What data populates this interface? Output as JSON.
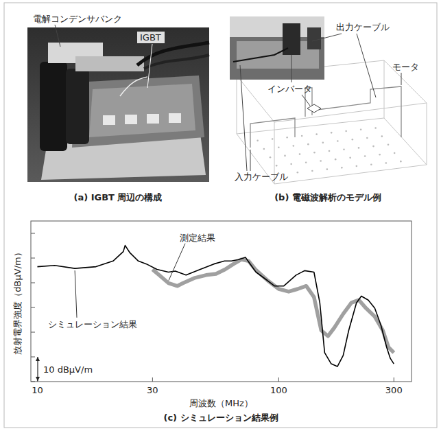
{
  "panels": [
    {
      "caption": "(a) IGBT 周辺の構成",
      "labels": [
        "電解コンデンサバンク",
        "IGBT"
      ]
    },
    {
      "caption": "(b) 電磁波解析のモデル例",
      "labels": [
        "出力ケーブル",
        "モータ",
        "インバータ",
        "入力ケーブル"
      ]
    }
  ],
  "chart_data": {
    "type": "line",
    "title": "(c) シミュレーション結果例",
    "x_label": "周波数（MHz）",
    "y_label": "放射電界強度（dBμV/m）",
    "log": "x",
    "grid": false,
    "tick_labels": "x",
    "xlim": [
      9.4,
      355
    ],
    "xticks": [
      10,
      30,
      100,
      300
    ],
    "ylim": [
      0,
      65
    ],
    "yticks": [
      0,
      10,
      20,
      30,
      40,
      50,
      60
    ],
    "scale_bar": {
      "value": 10,
      "label": "10 dBμV/m"
    },
    "series": [
      {
        "name": "シミュレーション結果",
        "color": "#000000",
        "line_style": "solid",
        "x": [
          10,
          11.8,
          14.3,
          17.5,
          20.6,
          22.7,
          23.1,
          24.2,
          26.2,
          28.3,
          31.3,
          34.9,
          37.3,
          41.3,
          47.3,
          53.9,
          59.6,
          63.7,
          68.1,
          72.8,
          80.5,
          89.8,
          96,
          105,
          118,
          128,
          140,
          148,
          155,
          165,
          175,
          185,
          195,
          210,
          220,
          235,
          250,
          265,
          280,
          290,
          300
        ],
        "values": [
          46.5,
          47.0,
          45.8,
          46.5,
          48.8,
          52.6,
          55.1,
          52.1,
          48.8,
          47.6,
          45.4,
          44.3,
          44.7,
          43.1,
          45.4,
          47.6,
          48.8,
          48.8,
          49.4,
          50.3,
          44.3,
          40.9,
          38.7,
          38.7,
          43.1,
          44.9,
          44.3,
          31.9,
          11.7,
          7.2,
          6.1,
          10.6,
          20.7,
          31.9,
          34.6,
          33.0,
          29.7,
          22.9,
          13.9,
          9.4,
          7.2
        ]
      },
      {
        "name": "測定結果",
        "color": "#a0a0a0",
        "line_style": "solid",
        "x": [
          30,
          32,
          35,
          38,
          40,
          45,
          50,
          55,
          60,
          65,
          70,
          75,
          80,
          90,
          100,
          110,
          120,
          130,
          140,
          150,
          160,
          170,
          185,
          200,
          215,
          230,
          250,
          270,
          285,
          300
        ],
        "values": [
          45.4,
          43.1,
          39.8,
          38.7,
          39.8,
          42.0,
          43.1,
          43.6,
          45.4,
          47.6,
          49.4,
          48.8,
          45.4,
          40.9,
          37.5,
          36.4,
          37.5,
          38.7,
          34.2,
          20.7,
          18.4,
          21.8,
          27.4,
          31.9,
          33.0,
          29.7,
          26.3,
          20.7,
          13.9,
          11.7
        ]
      }
    ]
  }
}
